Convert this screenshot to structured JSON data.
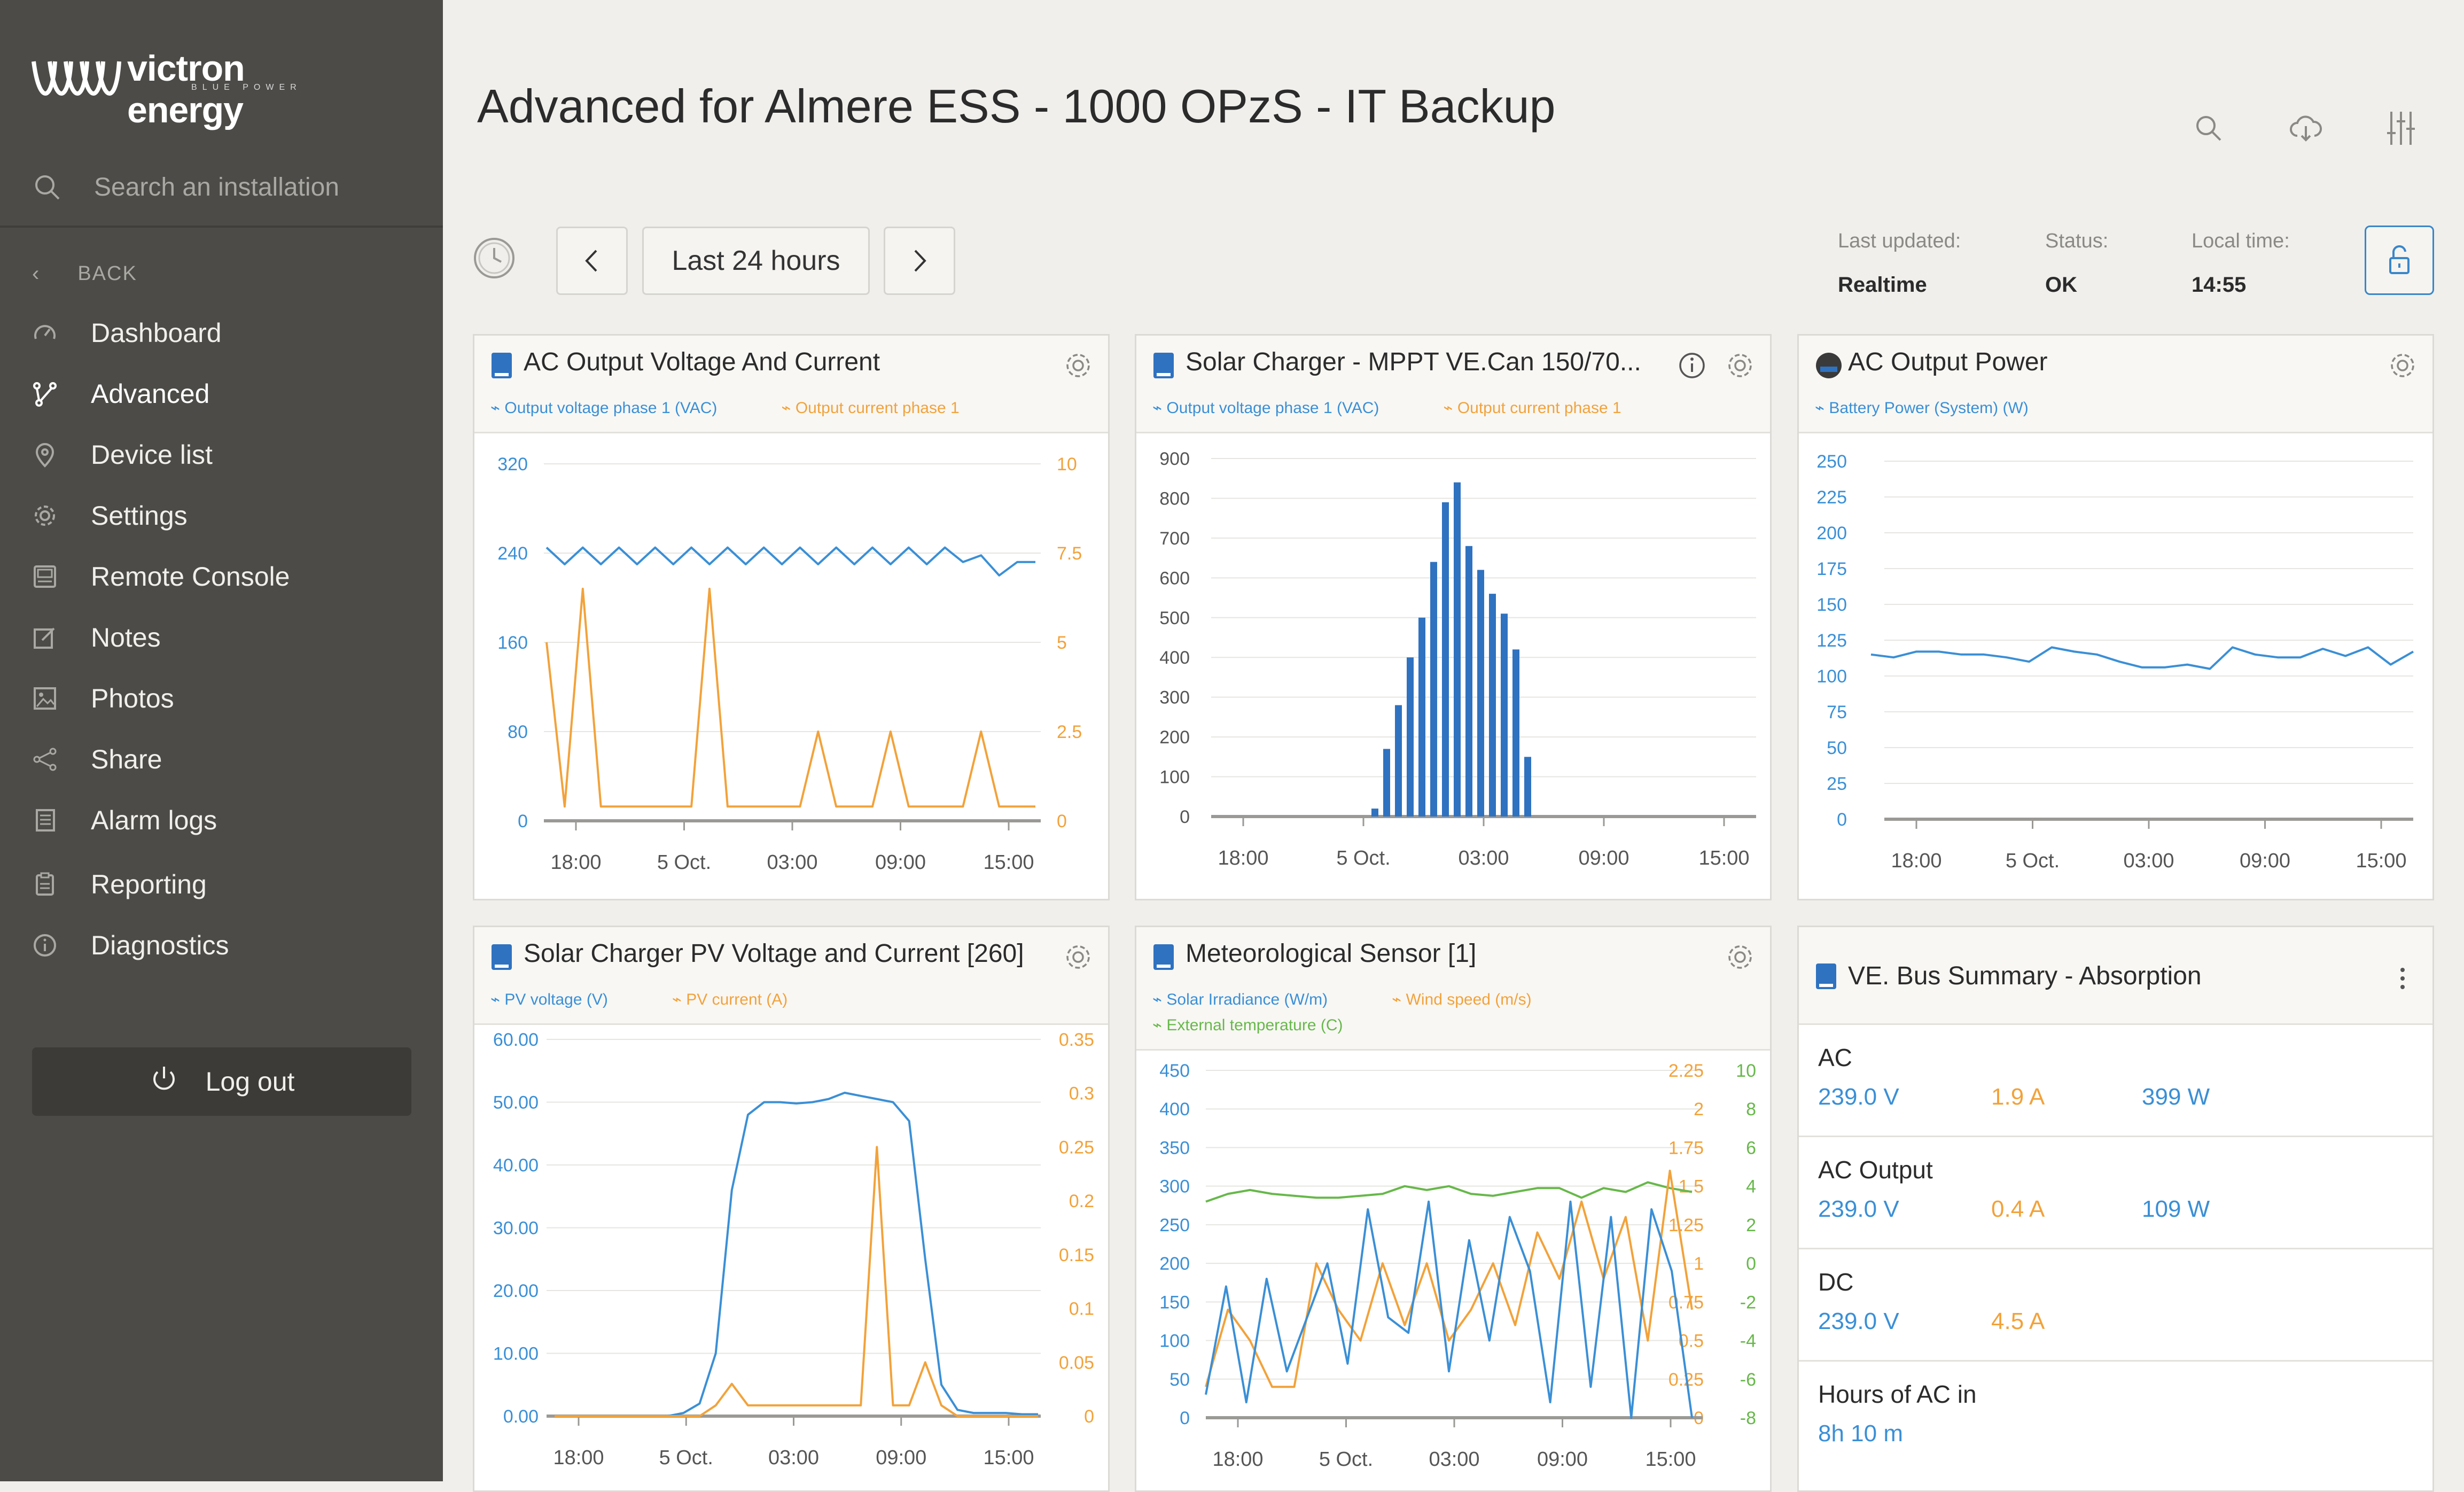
{
  "brand": {
    "name": "victron energy",
    "tagline": "BLUE POWER"
  },
  "sidebar": {
    "search_placeholder": "Search an installation",
    "back_label": "BACK",
    "items": [
      {
        "label": "Dashboard",
        "icon": "gauge-icon"
      },
      {
        "label": "Advanced",
        "icon": "branch-icon",
        "active": true
      },
      {
        "label": "Device list",
        "icon": "pin-icon"
      },
      {
        "label": "Settings",
        "icon": "gear-icon"
      },
      {
        "label": "Remote Console",
        "icon": "console-icon"
      },
      {
        "label": "Notes",
        "icon": "notes-icon"
      },
      {
        "label": "Photos",
        "icon": "photos-icon"
      },
      {
        "label": "Share",
        "icon": "share-icon"
      },
      {
        "label": "Alarm logs",
        "icon": "alarm-log-icon"
      },
      {
        "label": "Reporting",
        "icon": "clipboard-icon"
      },
      {
        "label": "Diagnostics",
        "icon": "info-icon"
      }
    ],
    "logout_label": "Log out"
  },
  "header": {
    "title": "Advanced for Almere ESS - 1000 OPzS - IT Backup",
    "range_label": "Last 24 hours",
    "last_updated_label": "Last updated:",
    "last_updated_value": "Realtime",
    "status_label": "Status:",
    "status_value": "OK",
    "local_time_label": "Local time:",
    "local_time_value": "14:55"
  },
  "colors": {
    "blue": "#3a8fd6",
    "orange": "#f2a23a",
    "green": "#67b84a",
    "sidebar": "#4c4b47",
    "bar": "#2f72c0"
  },
  "cards": {
    "c1": {
      "title": "AC Output Voltage And Current",
      "legend": [
        "Output voltage phase 1 (VAC)",
        "Output current phase 1"
      ]
    },
    "c2": {
      "title": "Solar Charger - MPPT VE.Can 150/70...",
      "legend": [
        "Output voltage phase 1 (VAC)",
        "Output current phase 1"
      ]
    },
    "c3": {
      "title": "AC Output Power",
      "legend": [
        "Battery Power (System) (W)"
      ]
    },
    "c4": {
      "title": "Solar Charger PV Voltage and Current [260]",
      "legend": [
        "PV voltage (V)",
        "PV current (A)"
      ]
    },
    "c5": {
      "title": "Meteorological Sensor [1]",
      "legend": [
        "Solar Irradiance (W/m)",
        "Wind speed (m/s)",
        "External temperature (C)"
      ]
    },
    "ve": {
      "title": "VE. Bus Summary - Absorption",
      "rows": [
        {
          "label": "AC",
          "v": "239.0 V",
          "a": "1.9 A",
          "w": "399 W"
        },
        {
          "label": "AC Output",
          "v": "239.0 V",
          "a": "0.4 A",
          "w": "109 W"
        },
        {
          "label": "DC",
          "v": "239.0 V",
          "a": "4.5 A",
          "w": ""
        },
        {
          "label": "Hours of AC in",
          "v": "8h 10 m",
          "a": "",
          "w": ""
        }
      ]
    }
  },
  "chart_data": [
    {
      "type": "line",
      "title": "AC Output Voltage And Current",
      "x_ticks": [
        "18:00",
        "5 Oct.",
        "03:00",
        "09:00",
        "15:00"
      ],
      "y_left_ticks": [
        "320",
        "240",
        "160",
        "80",
        "0"
      ],
      "y_right_ticks": [
        "10",
        "7.5",
        "5",
        "2.5",
        "0"
      ],
      "ylim_left": [
        0,
        320
      ],
      "ylim_right": [
        0,
        10
      ],
      "series": [
        {
          "name": "Output voltage phase 1 (VAC)",
          "axis": "left",
          "values": [
            245,
            230,
            245,
            230,
            245,
            230,
            245,
            230,
            245,
            230,
            245,
            230,
            245,
            230,
            245,
            230,
            245,
            230,
            245,
            230,
            245,
            230,
            245,
            232,
            238,
            220,
            232,
            232
          ]
        },
        {
          "name": "Output current phase 1",
          "axis": "right",
          "values": [
            5,
            0.4,
            6.5,
            0.4,
            0.4,
            0.4,
            0.4,
            0.4,
            0.4,
            6.5,
            0.4,
            0.4,
            0.4,
            0.4,
            0.4,
            2.5,
            0.4,
            0.4,
            0.4,
            2.5,
            0.4,
            0.4,
            0.4,
            0.4,
            2.5,
            0.4,
            0.4,
            0.4
          ]
        }
      ]
    },
    {
      "type": "bar",
      "title": "Solar Charger - MPPT VE.Can 150/70...",
      "x_ticks": [
        "18:00",
        "5 Oct.",
        "03:00",
        "09:00",
        "15:00"
      ],
      "y_ticks": [
        "900",
        "800",
        "700",
        "600",
        "500",
        "400",
        "300",
        "200",
        "100",
        "0"
      ],
      "ylim": [
        0,
        900
      ],
      "values": [
        20,
        170,
        280,
        400,
        500,
        640,
        790,
        840,
        680,
        620,
        560,
        510,
        420,
        150
      ]
    },
    {
      "type": "line",
      "title": "AC Output Power",
      "x_ticks": [
        "18:00",
        "5 Oct.",
        "03:00",
        "09:00",
        "15:00"
      ],
      "y_ticks": [
        "250",
        "225",
        "200",
        "175",
        "150",
        "125",
        "100",
        "75",
        "50",
        "25",
        "0"
      ],
      "ylim": [
        0,
        250
      ],
      "series": [
        {
          "name": "Battery Power (System) (W)",
          "values": [
            115,
            113,
            117,
            117,
            115,
            115,
            113,
            110,
            120,
            117,
            115,
            110,
            106,
            106,
            108,
            105,
            120,
            115,
            113,
            113,
            119,
            114,
            120,
            108,
            117
          ]
        }
      ]
    },
    {
      "type": "line",
      "title": "Solar Charger PV Voltage and Current [260]",
      "x_ticks": [
        "18:00",
        "5 Oct.",
        "03:00",
        "09:00",
        "15:00"
      ],
      "y_left_ticks": [
        "60.00",
        "50.00",
        "40.00",
        "30.00",
        "20.00",
        "10.00",
        "0.00"
      ],
      "y_right_ticks": [
        "0.35",
        "0.3",
        "0.25",
        "0.2",
        "0.15",
        "0.1",
        "0.05",
        "0"
      ],
      "ylim_left": [
        0,
        60
      ],
      "ylim_right": [
        0,
        0.35
      ],
      "series": [
        {
          "name": "PV voltage (V)",
          "axis": "left",
          "values": [
            0,
            0,
            0,
            0,
            0,
            0,
            0,
            0,
            0.5,
            2,
            10,
            36,
            48,
            50,
            50,
            49.8,
            50,
            50.5,
            51.5,
            51,
            50.5,
            50,
            47,
            25,
            5,
            1,
            0.5,
            0.5,
            0.5,
            0.3,
            0.3
          ]
        },
        {
          "name": "PV current (A)",
          "axis": "right",
          "values": [
            0,
            0,
            0,
            0,
            0,
            0,
            0,
            0,
            0,
            0,
            0.01,
            0.03,
            0.01,
            0.01,
            0.01,
            0.01,
            0.01,
            0.01,
            0.01,
            0.01,
            0.25,
            0.01,
            0.01,
            0.05,
            0.01,
            0,
            0,
            0,
            0,
            0,
            0
          ]
        }
      ]
    },
    {
      "type": "line",
      "title": "Meteorological Sensor [1]",
      "x_ticks": [
        "18:00",
        "5 Oct.",
        "03:00",
        "09:00",
        "15:00"
      ],
      "y_left_ticks": [
        "450",
        "400",
        "350",
        "300",
        "250",
        "200",
        "150",
        "100",
        "50",
        "0"
      ],
      "y_mid_ticks": [
        "2.25",
        "2",
        "1.75",
        "1.5",
        "1.25",
        "1",
        "0.75",
        "0.5",
        "0.25",
        "0"
      ],
      "y_right_ticks": [
        "10",
        "8",
        "6",
        "4",
        "2",
        "0",
        "-2",
        "-4",
        "-6",
        "-8"
      ],
      "series": [
        {
          "name": "Solar Irradiance (W/m)",
          "axis": "left",
          "values": [
            30,
            170,
            20,
            180,
            60,
            130,
            200,
            70,
            270,
            130,
            110,
            280,
            60,
            230,
            100,
            260,
            190,
            20,
            280,
            40,
            260,
            0,
            270,
            190,
            0
          ]
        },
        {
          "name": "Wind speed (m/s)",
          "axis": "mid",
          "values": [
            0.2,
            0.7,
            0.5,
            0.2,
            0.2,
            1,
            0.7,
            0.5,
            1,
            0.6,
            1,
            0.5,
            0.7,
            1,
            0.6,
            1.2,
            0.9,
            1.4,
            0.9,
            1.3,
            0.5,
            1.6,
            0.7
          ]
        },
        {
          "name": "External temperature (C)",
          "axis": "right",
          "values": [
            3.2,
            3.6,
            3.8,
            3.6,
            3.5,
            3.4,
            3.4,
            3.5,
            3.6,
            4,
            3.8,
            4,
            3.6,
            3.5,
            3.7,
            3.9,
            3.9,
            3.4,
            3.9,
            3.7,
            4.2,
            3.9,
            3.7
          ]
        }
      ]
    }
  ]
}
